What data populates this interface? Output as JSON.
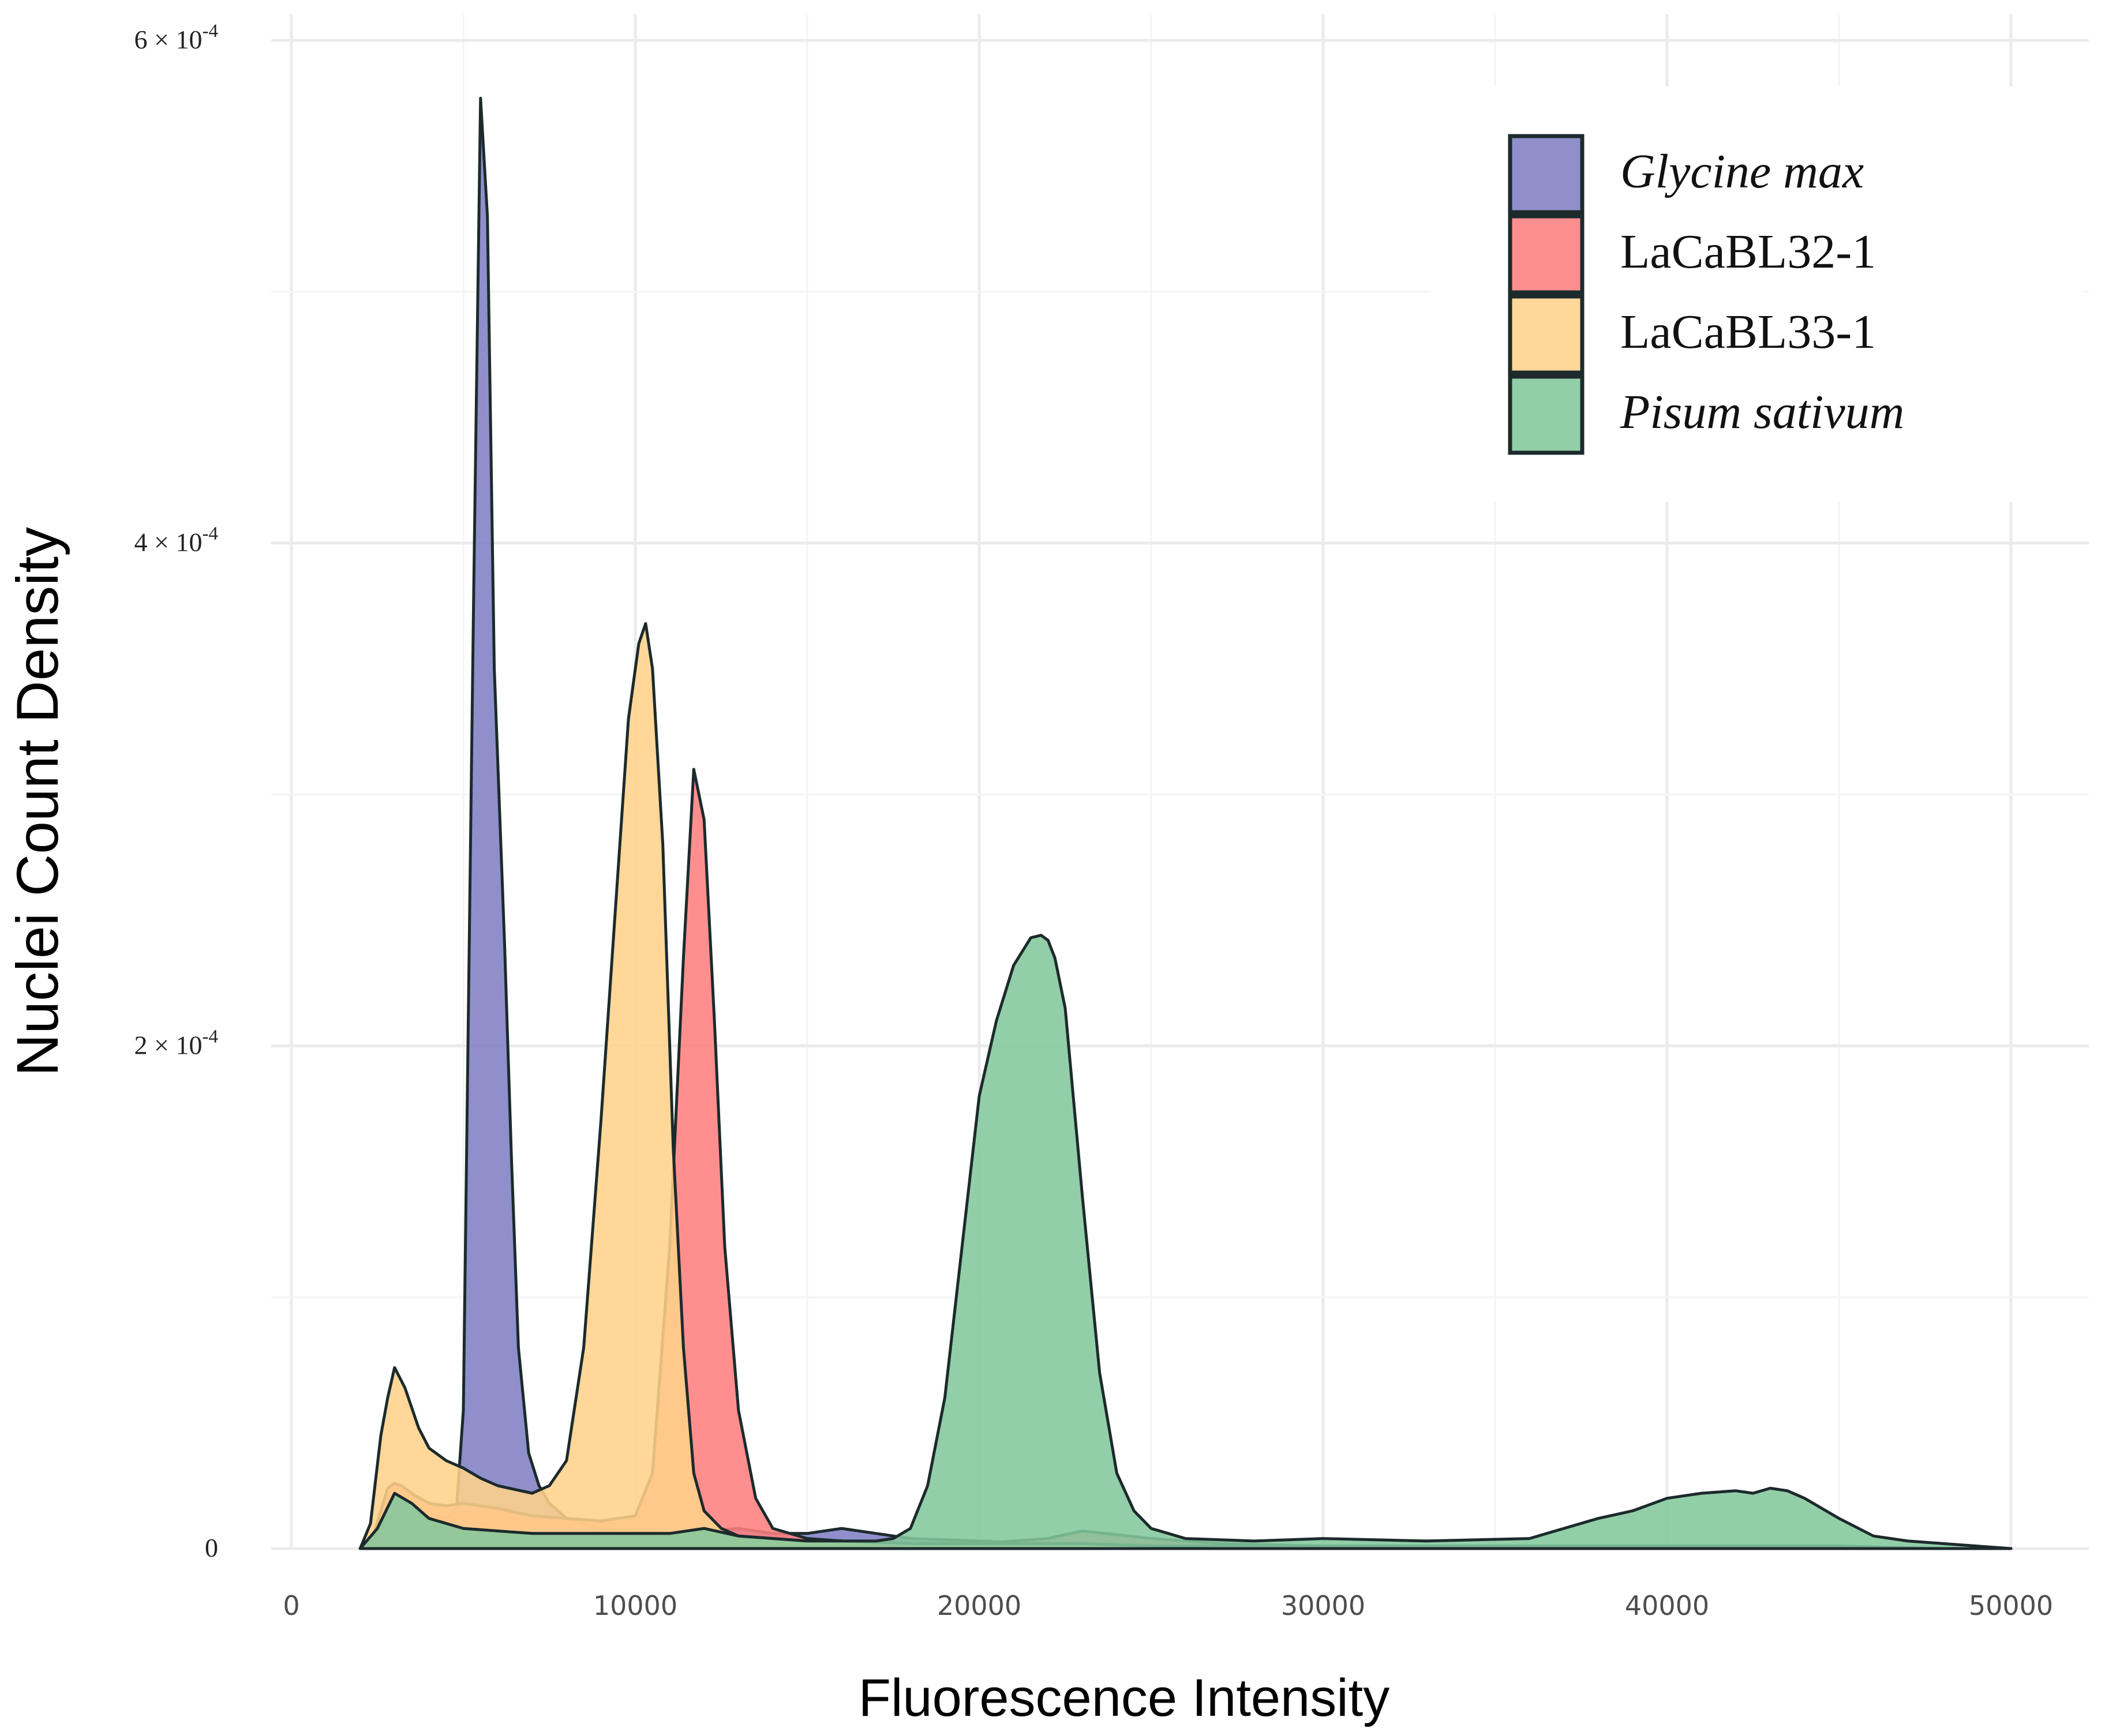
{
  "chart_data": {
    "type": "area",
    "subtype": "density",
    "title": "",
    "xlabel": "Fluorescence Intensity",
    "ylabel": "Nuclei Count Density",
    "xlim": [
      0,
      50000
    ],
    "ylim": [
      0,
      0.0006
    ],
    "x_ticks": [
      0,
      10000,
      20000,
      30000,
      40000,
      50000
    ],
    "x_tick_labels": [
      "0",
      "10000",
      "20000",
      "30000",
      "40000",
      "50000"
    ],
    "y_ticks": [
      0,
      0.0002,
      0.0004,
      0.0006
    ],
    "y_tick_labels": [
      {
        "base": "0",
        "exp": ""
      },
      {
        "base": "2 × 10",
        "exp": "-4"
      },
      {
        "base": "4 × 10",
        "exp": "-4"
      },
      {
        "base": "6 × 10",
        "exp": "-4"
      }
    ],
    "grid": true,
    "legend_position": "top-right",
    "series": [
      {
        "name": "Glycine max",
        "italic": true,
        "color": "#7f7fc4",
        "x": [
          2000,
          2500,
          3000,
          3500,
          4000,
          4500,
          4800,
          5000,
          5300,
          5500,
          5700,
          5900,
          6200,
          6400,
          6600,
          6900,
          7200,
          7500,
          8000,
          8500,
          9000,
          10000,
          11000,
          12000,
          13000,
          14000,
          15000,
          16000,
          17000,
          18000,
          20000,
          22000,
          24000,
          27000,
          30000,
          35000,
          40000,
          45000,
          48000,
          50000
        ],
        "y": [
          0,
          4e-06,
          2.2e-05,
          1.8e-05,
          1.2e-05,
          1.2e-05,
          1.6e-05,
          5.5e-05,
          0.00038,
          0.000577,
          0.00053,
          0.00035,
          0.00024,
          0.000155,
          8e-05,
          3.8e-05,
          2.5e-05,
          1.8e-05,
          1.2e-05,
          1e-05,
          8e-06,
          7e-06,
          6e-06,
          7e-06,
          8e-06,
          6e-06,
          6e-06,
          8e-06,
          6e-06,
          4e-06,
          3e-06,
          2e-06,
          2e-06,
          1e-06,
          1e-06,
          1e-06,
          1e-06,
          1e-06,
          0,
          0
        ]
      },
      {
        "name": "LaCaBL32-1",
        "italic": false,
        "color": "#ff7f7f",
        "x": [
          2000,
          2400,
          2800,
          3000,
          3200,
          3600,
          4000,
          4500,
          5000,
          6000,
          7000,
          8000,
          9000,
          10000,
          10500,
          11000,
          11400,
          11700,
          12000,
          12300,
          12600,
          13000,
          13500,
          14000,
          15000,
          16000,
          17000,
          18000,
          20000,
          22000,
          23000,
          25000,
          27000,
          30000,
          35000,
          40000,
          45000,
          48000,
          50000
        ],
        "y": [
          0,
          6e-06,
          2.4e-05,
          2.6e-05,
          2.5e-05,
          2.1e-05,
          1.8e-05,
          1.7e-05,
          1.8e-05,
          1.6e-05,
          1.3e-05,
          1.2e-05,
          1.1e-05,
          1.3e-05,
          3e-05,
          0.00012,
          0.000235,
          0.00031,
          0.00029,
          0.00021,
          0.00012,
          5.5e-05,
          2e-05,
          8e-06,
          4e-06,
          3e-06,
          2e-06,
          2e-06,
          2e-06,
          4e-06,
          7e-06,
          4e-06,
          2e-06,
          1e-06,
          1e-06,
          1e-06,
          1e-06,
          0,
          0
        ]
      },
      {
        "name": "LaCaBL33-1",
        "italic": false,
        "color": "#ffd28a",
        "x": [
          2000,
          2300,
          2600,
          2800,
          3000,
          3300,
          3700,
          4000,
          4500,
          5000,
          5500,
          6000,
          7000,
          7500,
          8000,
          8500,
          9000,
          9500,
          9800,
          10100,
          10300,
          10500,
          10800,
          11100,
          11400,
          11700,
          12000,
          12500,
          13000,
          14000,
          15000,
          16000,
          18000,
          20000,
          23000,
          25000,
          30000,
          35000,
          40000,
          45000,
          50000
        ],
        "y": [
          0,
          1e-05,
          4.5e-05,
          6e-05,
          7.2e-05,
          6.4e-05,
          4.8e-05,
          4e-05,
          3.5e-05,
          3.2e-05,
          2.8e-05,
          2.5e-05,
          2.2e-05,
          2.5e-05,
          3.5e-05,
          8e-05,
          0.00017,
          0.00027,
          0.00033,
          0.00036,
          0.000368,
          0.00035,
          0.00028,
          0.00016,
          8e-05,
          3e-05,
          1.5e-05,
          8e-06,
          5e-06,
          4e-06,
          3e-06,
          3e-06,
          2e-06,
          2e-06,
          2e-06,
          1e-06,
          1e-06,
          1e-06,
          1e-06,
          0,
          0
        ]
      },
      {
        "name": "Pisum sativum",
        "italic": true,
        "color": "#83c79c",
        "x": [
          2000,
          2500,
          3000,
          3500,
          4000,
          5000,
          7000,
          9000,
          11000,
          12000,
          13000,
          14000,
          15000,
          16000,
          17000,
          17500,
          18000,
          18500,
          19000,
          19500,
          20000,
          20500,
          21000,
          21500,
          21800,
          22000,
          22200,
          22500,
          23000,
          23500,
          24000,
          24500,
          25000,
          26000,
          28000,
          30000,
          33000,
          36000,
          37000,
          38000,
          39000,
          40000,
          41000,
          42000,
          42500,
          43000,
          43500,
          44000,
          45000,
          46000,
          47000,
          48000,
          49000,
          50000
        ],
        "y": [
          0,
          8e-06,
          2.2e-05,
          1.8e-05,
          1.2e-05,
          8e-06,
          6e-06,
          6e-06,
          6e-06,
          8e-06,
          5e-06,
          4e-06,
          3e-06,
          3e-06,
          3e-06,
          4e-06,
          8e-06,
          2.5e-05,
          6e-05,
          0.00012,
          0.00018,
          0.00021,
          0.000232,
          0.000243,
          0.000244,
          0.000242,
          0.000235,
          0.000215,
          0.00014,
          7e-05,
          3e-05,
          1.5e-05,
          8e-06,
          4e-06,
          3e-06,
          4e-06,
          3e-06,
          4e-06,
          8e-06,
          1.2e-05,
          1.5e-05,
          2e-05,
          2.2e-05,
          2.3e-05,
          2.2e-05,
          2.4e-05,
          2.3e-05,
          2e-05,
          1.2e-05,
          5e-06,
          3e-06,
          2e-06,
          1e-06,
          0
        ]
      }
    ]
  }
}
